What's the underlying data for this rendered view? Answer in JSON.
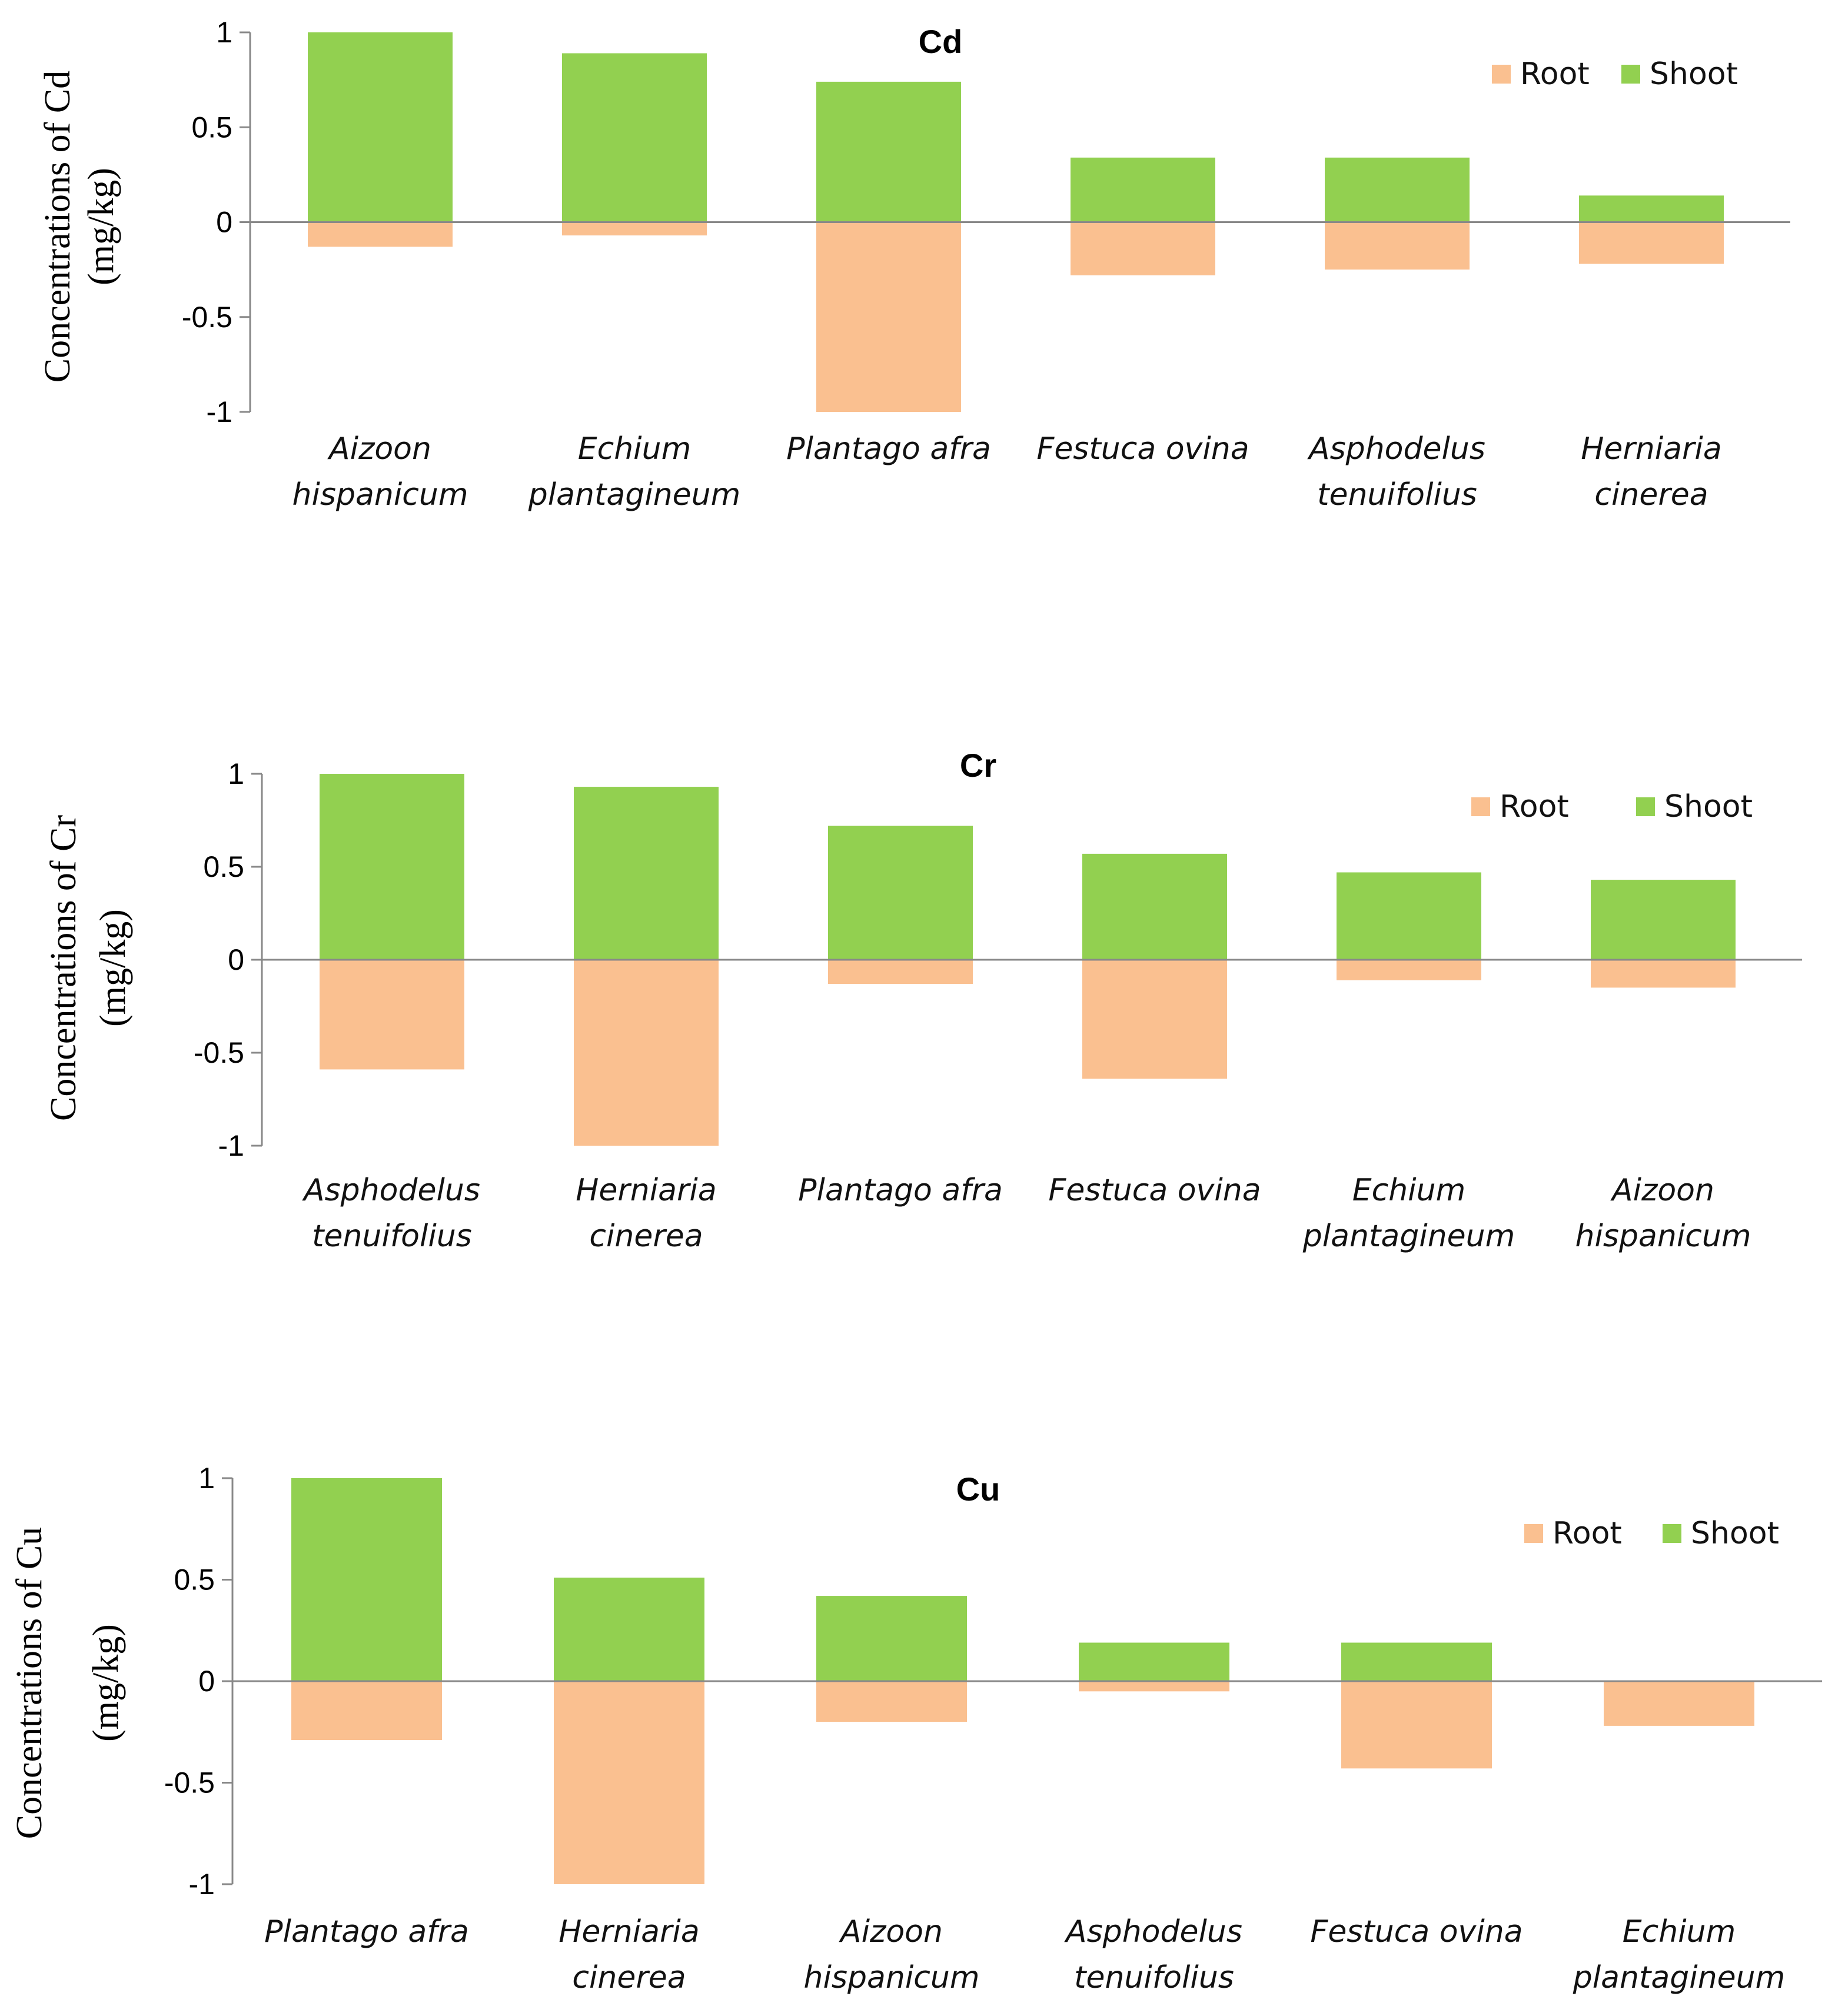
{
  "chart_data": [
    {
      "type": "bar",
      "title": "Cd",
      "ylabel_lines": [
        "Concentrations of Cd",
        "(mg/kg)"
      ],
      "ylim": [
        -1,
        1
      ],
      "yticks": [
        "-1",
        "-0.5",
        "0",
        "0.5",
        "1"
      ],
      "categories": [
        [
          "Aizoon",
          "hispanicum"
        ],
        [
          "Echium",
          "plantagineum"
        ],
        [
          "Plantago afra"
        ],
        [
          "Festuca ovina"
        ],
        [
          "Asphodelus",
          "tenuifolius"
        ],
        [
          "Herniaria",
          "cinerea"
        ]
      ],
      "series": [
        {
          "name": "Root",
          "color": "#fac090",
          "values": [
            -0.13,
            -0.07,
            -1.0,
            -0.28,
            -0.25,
            -0.22
          ]
        },
        {
          "name": "Shoot",
          "color": "#92d050",
          "values": [
            1.0,
            0.89,
            0.74,
            0.34,
            0.34,
            0.14
          ]
        }
      ],
      "legend": "top-right"
    },
    {
      "type": "bar",
      "title": "Cr",
      "ylabel_lines": [
        "Concentrations of Cr",
        "(mg/kg)"
      ],
      "ylim": [
        -1,
        1
      ],
      "yticks": [
        "-1",
        "-0.5",
        "0",
        "0.5",
        "1"
      ],
      "categories": [
        [
          "Asphodelus",
          "tenuifolius"
        ],
        [
          "Herniaria",
          "cinerea"
        ],
        [
          "Plantago afra"
        ],
        [
          "Festuca ovina"
        ],
        [
          "Echium",
          "plantagineum"
        ],
        [
          "Aizoon",
          "hispanicum"
        ]
      ],
      "series": [
        {
          "name": "Root",
          "color": "#fac090",
          "values": [
            -0.59,
            -1.0,
            -0.13,
            -0.64,
            -0.11,
            -0.15
          ]
        },
        {
          "name": "Shoot",
          "color": "#92d050",
          "values": [
            1.0,
            0.93,
            0.72,
            0.57,
            0.47,
            0.43
          ]
        }
      ],
      "legend": "top-right"
    },
    {
      "type": "bar",
      "title": "Cu",
      "ylabel_lines": [
        "Concentrations of Cu",
        "(mg/kg)"
      ],
      "ylim": [
        -1,
        1
      ],
      "yticks": [
        "-1",
        "-0.5",
        "0",
        "0.5",
        "1"
      ],
      "categories": [
        [
          "Plantago afra"
        ],
        [
          "Herniaria",
          "cinerea"
        ],
        [
          "Aizoon",
          "hispanicum"
        ],
        [
          "Asphodelus",
          "tenuifolius"
        ],
        [
          "Festuca ovina"
        ],
        [
          "Echium",
          "plantagineum"
        ]
      ],
      "series": [
        {
          "name": "Root",
          "color": "#fac090",
          "values": [
            -0.29,
            -1.0,
            -0.2,
            -0.05,
            -0.43,
            -0.22
          ]
        },
        {
          "name": "Shoot",
          "color": "#92d050",
          "values": [
            1.0,
            0.51,
            0.42,
            0.19,
            0.19,
            0.0
          ]
        }
      ],
      "legend": "top-right"
    }
  ]
}
